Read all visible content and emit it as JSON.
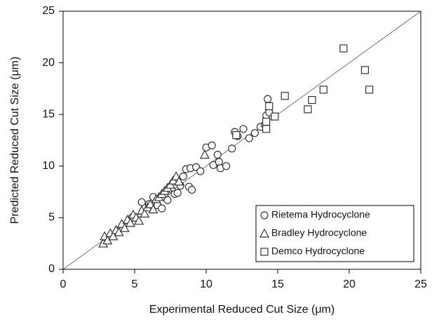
{
  "chart_data": {
    "type": "scatter",
    "x_label": "Experimental Reduced Cut Size (μm)",
    "y_label": "Predicted Reduced Cut Size (μm)",
    "xlim": [
      0,
      25
    ],
    "ylim": [
      0,
      25
    ],
    "xticks": [
      0,
      5,
      10,
      15,
      20,
      25
    ],
    "yticks": [
      0,
      5,
      10,
      15,
      20,
      25
    ],
    "diagonal": true,
    "legend": "lower right",
    "series": [
      {
        "name": "Rietema Hydrocyclone",
        "marker": "circle",
        "color": "#333333",
        "x": [
          4.8,
          5.5,
          6.0,
          6.3,
          6.6,
          6.9,
          7.1,
          7.3,
          7.6,
          7.8,
          8.0,
          8.2,
          8.4,
          8.6,
          8.8,
          8.9,
          9.0,
          9.3,
          9.6,
          10.0,
          10.4,
          10.5,
          10.8,
          10.9,
          11.0,
          11.4,
          11.8,
          12.0,
          12.2,
          12.6,
          13.0,
          13.4,
          13.8,
          14.2,
          14.3,
          14.4,
          14.1
        ],
        "values": [
          5.0,
          6.5,
          6.3,
          7.0,
          6.2,
          5.9,
          7.0,
          6.7,
          7.7,
          7.3,
          7.4,
          8.1,
          9.0,
          9.7,
          8.0,
          9.8,
          7.7,
          9.9,
          9.5,
          11.8,
          12.0,
          10.1,
          11.1,
          10.4,
          9.8,
          10.0,
          11.7,
          13.3,
          12.9,
          13.6,
          12.7,
          13.2,
          13.8,
          14.9,
          16.5,
          15.2,
          14.0
        ]
      },
      {
        "name": "Bradley Hydrocyclone",
        "marker": "triangle",
        "color": "#333333",
        "x": [
          2.8,
          2.9,
          3.1,
          3.3,
          3.5,
          3.7,
          3.9,
          4.1,
          4.3,
          4.5,
          4.7,
          4.9,
          5.1,
          5.3,
          5.5,
          5.7,
          5.9,
          6.1,
          6.3,
          6.5,
          6.7,
          6.9,
          7.1,
          7.3,
          7.5,
          7.7,
          7.9,
          8.1,
          9.9
        ],
        "values": [
          2.5,
          3.2,
          2.8,
          3.5,
          3.2,
          3.8,
          3.6,
          4.4,
          4.0,
          4.8,
          4.5,
          5.3,
          5.0,
          4.7,
          5.7,
          5.4,
          6.0,
          6.3,
          5.8,
          6.8,
          7.0,
          7.3,
          7.6,
          7.9,
          8.2,
          8.6,
          9.0,
          8.5,
          11.1
        ]
      },
      {
        "name": "Demco Hydrocyclone",
        "marker": "square",
        "color": "#333333",
        "x": [
          12.1,
          14.2,
          14.2,
          14.4,
          14.8,
          15.5,
          17.1,
          17.4,
          18.2,
          19.6,
          21.1,
          21.4
        ],
        "values": [
          13.0,
          13.6,
          14.3,
          15.8,
          14.8,
          16.8,
          15.5,
          16.4,
          17.4,
          21.4,
          19.3,
          17.4
        ]
      }
    ]
  }
}
